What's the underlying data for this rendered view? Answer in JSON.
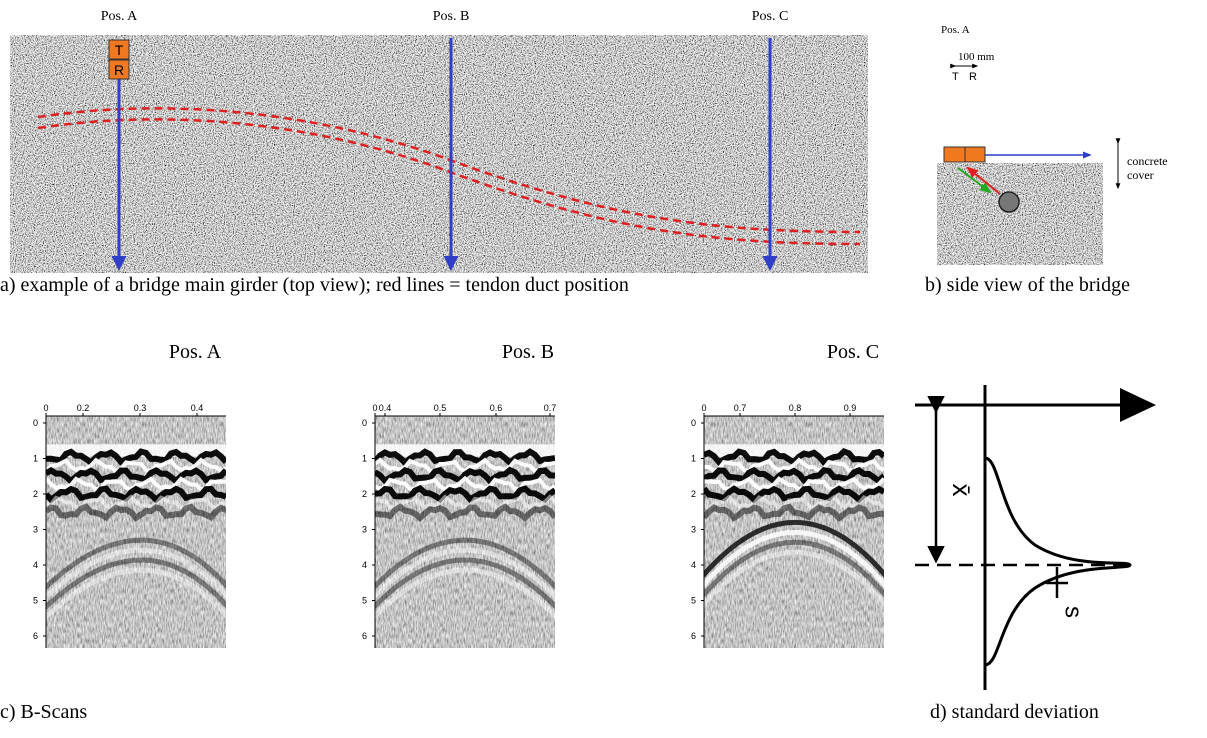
{
  "girder": {
    "positions": [
      "Pos. A",
      "Pos. B",
      "Pos. C"
    ],
    "sensor": [
      "T",
      "R"
    ],
    "caption": "a) example of a bridge main girder (top view); red lines = tendon duct position"
  },
  "side_view": {
    "position": "Pos. A",
    "spacing": "100 mm",
    "sensor": [
      "T",
      "R"
    ],
    "cover": [
      "concrete",
      "cover"
    ],
    "caption": "b) side view of the bridge"
  },
  "bscans": {
    "panels": [
      {
        "title": "Pos. A",
        "xticks": [
          0,
          0.2,
          0.3,
          0.4
        ],
        "yticks": [
          0,
          1,
          2,
          3,
          4,
          5,
          6
        ]
      },
      {
        "title": "Pos. B",
        "xticks": [
          0,
          0.4,
          0.5,
          0.6,
          0.7
        ],
        "yticks": [
          0,
          1,
          2,
          3,
          4,
          5,
          6
        ]
      },
      {
        "title": "Pos. C",
        "xticks": [
          0,
          0.7,
          0.8,
          0.9
        ],
        "yticks": [
          0,
          1,
          2,
          3,
          4,
          5,
          6
        ]
      }
    ],
    "caption": "c) B-Scans"
  },
  "std_dev": {
    "mean_label": "x̄",
    "deviation_label": "s",
    "caption": "d) standard deviation"
  }
}
